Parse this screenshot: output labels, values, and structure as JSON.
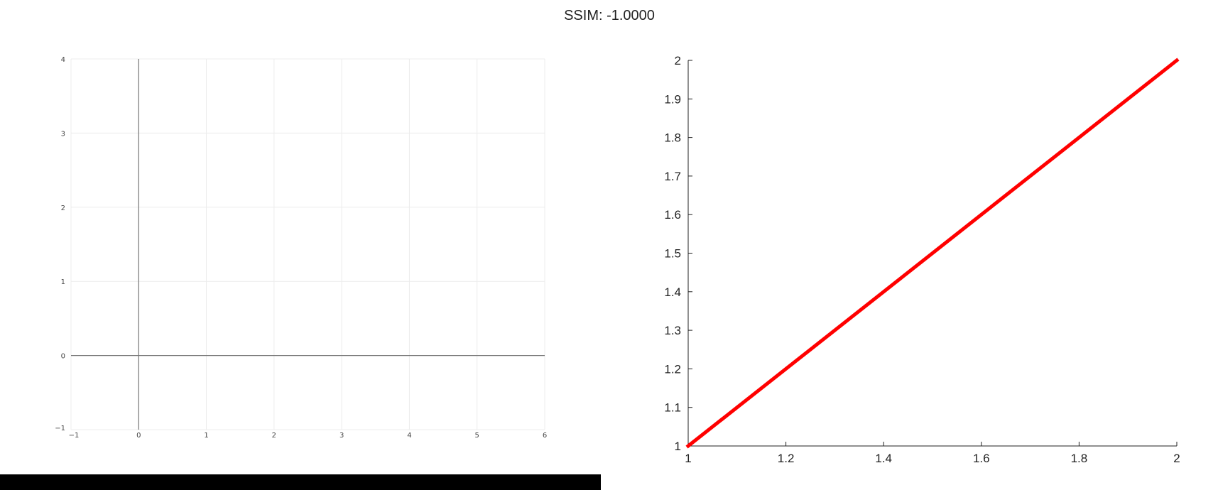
{
  "figure": {
    "title": "SSIM: -1.0000"
  },
  "chart_data": [
    {
      "type": "line",
      "title": "",
      "xlabel": "",
      "ylabel": "",
      "xlim": [
        -1,
        6
      ],
      "ylim": [
        -1,
        4
      ],
      "x_ticks": [
        -1,
        0,
        1,
        2,
        3,
        4,
        5,
        6
      ],
      "y_ticks": [
        -1,
        0,
        1,
        2,
        3,
        4
      ],
      "grid": true,
      "zero_axes": true,
      "series": []
    },
    {
      "type": "line",
      "title": "",
      "xlabel": "",
      "ylabel": "",
      "xlim": [
        1,
        2
      ],
      "ylim": [
        1,
        2
      ],
      "x_ticks": [
        1,
        1.2,
        1.4,
        1.6,
        1.8,
        2
      ],
      "y_ticks": [
        1,
        1.1,
        1.2,
        1.3,
        1.4,
        1.5,
        1.6,
        1.7,
        1.8,
        1.9,
        2
      ],
      "grid": false,
      "series": [
        {
          "x": [
            1,
            2
          ],
          "y": [
            1,
            2
          ],
          "color": "#ff0000"
        }
      ]
    }
  ]
}
